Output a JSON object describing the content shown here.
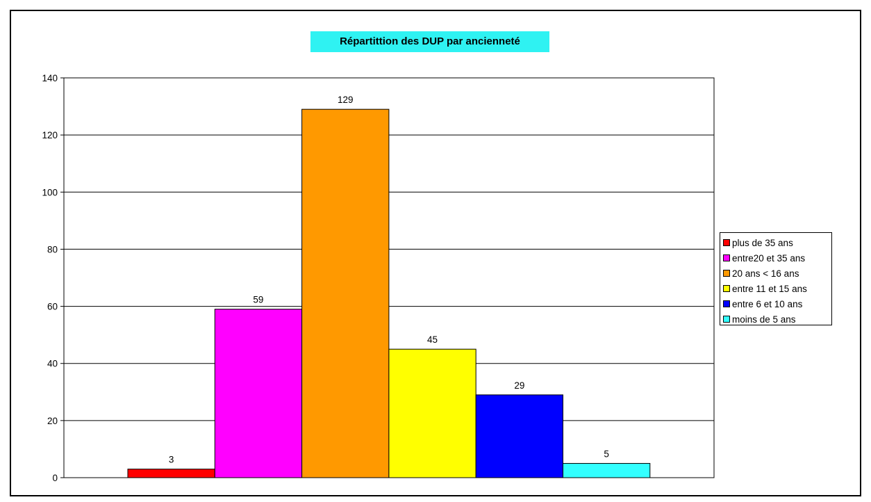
{
  "chart_data": {
    "type": "bar",
    "title": "Répartittion des DUP par ancienneté",
    "xlabel": "",
    "ylabel": "",
    "ylim": [
      0,
      140
    ],
    "yticks": [
      0,
      20,
      40,
      60,
      80,
      100,
      120,
      140
    ],
    "grid": true,
    "legend_position": "right",
    "series": [
      {
        "name": "plus de 35 ans",
        "value": 3,
        "color": "#ff0000"
      },
      {
        "name": "entre20 et 35 ans",
        "value": 59,
        "color": "#ff00ff"
      },
      {
        "name": "20 ans < 16 ans",
        "value": 129,
        "color": "#ff9900"
      },
      {
        "name": "entre 11 et 15 ans",
        "value": 45,
        "color": "#ffff00"
      },
      {
        "name": "entre 6 et 10 ans",
        "value": 29,
        "color": "#0000ff"
      },
      {
        "name": "moins de 5 ans",
        "value": 5,
        "color": "#33ffff"
      }
    ]
  }
}
